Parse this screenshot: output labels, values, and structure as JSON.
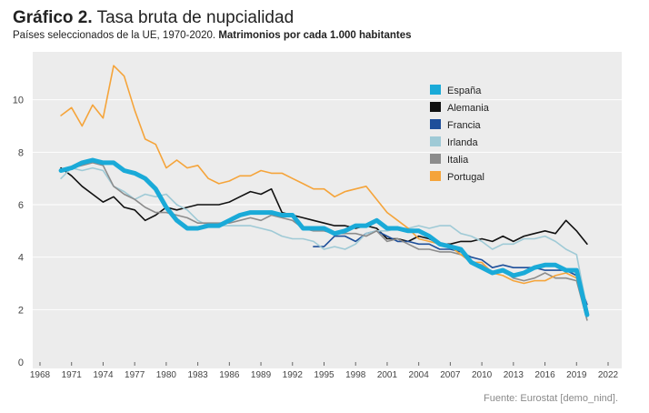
{
  "header": {
    "title_prefix": "Gráfico 2.",
    "title": "Tasa bruta de nupcialidad",
    "subtitle": "Países seleccionados de la UE, 1970-2020.",
    "unit": "Matrimonios por cada 1.000 habitantes"
  },
  "footer": {
    "source": "Fuente: Eurostat [demo_nind]."
  },
  "chart_data": {
    "type": "line",
    "xlim": [
      1968,
      2022
    ],
    "ylim": [
      0,
      12
    ],
    "x_ticks": [
      "1968",
      "1971",
      "1974",
      "1977",
      "1980",
      "1983",
      "1986",
      "1989",
      "1992",
      "1995",
      "1998",
      "2001",
      "2004",
      "2007",
      "2010",
      "2013",
      "2016",
      "2019",
      "2022"
    ],
    "y_ticks": [
      "0",
      "2",
      "4",
      "6",
      "8",
      "10"
    ],
    "grid": true,
    "legend": "top-right",
    "series": [
      {
        "name": "España",
        "color": "#1aaad8",
        "bold": true,
        "x": [
          1970,
          1971,
          1972,
          1973,
          1974,
          1975,
          1976,
          1977,
          1978,
          1979,
          1980,
          1981,
          1982,
          1983,
          1984,
          1985,
          1986,
          1987,
          1988,
          1989,
          1990,
          1991,
          1992,
          1993,
          1994,
          1995,
          1996,
          1997,
          1998,
          1999,
          2000,
          2001,
          2002,
          2003,
          2004,
          2005,
          2006,
          2007,
          2008,
          2009,
          2010,
          2011,
          2012,
          2013,
          2014,
          2015,
          2016,
          2017,
          2018,
          2019,
          2020
        ],
        "y": [
          7.3,
          7.4,
          7.6,
          7.7,
          7.6,
          7.6,
          7.3,
          7.2,
          7.0,
          6.6,
          5.9,
          5.4,
          5.1,
          5.1,
          5.2,
          5.2,
          5.4,
          5.6,
          5.7,
          5.7,
          5.7,
          5.6,
          5.6,
          5.1,
          5.1,
          5.1,
          4.9,
          5.0,
          5.2,
          5.2,
          5.4,
          5.1,
          5.1,
          5.0,
          5.0,
          4.8,
          4.5,
          4.4,
          4.3,
          3.8,
          3.6,
          3.4,
          3.5,
          3.3,
          3.4,
          3.6,
          3.7,
          3.7,
          3.5,
          3.5,
          1.8
        ]
      },
      {
        "name": "Alemania",
        "color": "#111111",
        "x": [
          1970,
          1971,
          1972,
          1973,
          1974,
          1975,
          1976,
          1977,
          1978,
          1979,
          1980,
          1981,
          1982,
          1983,
          1984,
          1985,
          1986,
          1987,
          1988,
          1989,
          1990,
          1991,
          1992,
          1993,
          1994,
          1995,
          1996,
          1997,
          1998,
          1999,
          2000,
          2001,
          2002,
          2003,
          2004,
          2005,
          2006,
          2007,
          2008,
          2009,
          2010,
          2011,
          2012,
          2013,
          2014,
          2015,
          2016,
          2017,
          2018,
          2019,
          2020
        ],
        "y": [
          7.4,
          7.1,
          6.7,
          6.4,
          6.1,
          6.3,
          5.9,
          5.8,
          5.4,
          5.6,
          5.9,
          5.8,
          5.9,
          6.0,
          6.0,
          6.0,
          6.1,
          6.3,
          6.5,
          6.4,
          6.6,
          5.7,
          5.6,
          5.5,
          5.4,
          5.3,
          5.2,
          5.2,
          5.1,
          5.2,
          5.1,
          4.7,
          4.7,
          4.6,
          4.8,
          4.7,
          4.5,
          4.5,
          4.6,
          4.6,
          4.7,
          4.6,
          4.8,
          4.6,
          4.8,
          4.9,
          5.0,
          4.9,
          5.4,
          5.0,
          4.5
        ]
      },
      {
        "name": "Francia",
        "color": "#1e4f9a",
        "x": [
          1994,
          1995,
          1996,
          1997,
          1998,
          1999,
          2000,
          2001,
          2002,
          2003,
          2004,
          2005,
          2006,
          2007,
          2008,
          2009,
          2010,
          2011,
          2012,
          2013,
          2014,
          2015,
          2016,
          2017,
          2018,
          2019,
          2020
        ],
        "y": [
          4.4,
          4.4,
          4.8,
          4.8,
          4.6,
          4.9,
          5.0,
          4.8,
          4.6,
          4.6,
          4.5,
          4.5,
          4.3,
          4.3,
          4.2,
          4.0,
          3.9,
          3.6,
          3.7,
          3.6,
          3.6,
          3.6,
          3.5,
          3.5,
          3.5,
          3.3,
          2.2
        ]
      },
      {
        "name": "Irlanda",
        "color": "#9fcad6",
        "x": [
          1970,
          1971,
          1972,
          1973,
          1974,
          1975,
          1976,
          1977,
          1978,
          1979,
          1980,
          1981,
          1982,
          1983,
          1984,
          1985,
          1986,
          1987,
          1988,
          1989,
          1990,
          1991,
          1992,
          1993,
          1994,
          1995,
          1996,
          1997,
          1998,
          1999,
          2000,
          2001,
          2002,
          2003,
          2004,
          2005,
          2006,
          2007,
          2008,
          2009,
          2010,
          2011,
          2012,
          2013,
          2014,
          2015,
          2016,
          2017,
          2018,
          2019,
          2020
        ],
        "y": [
          7.0,
          7.4,
          7.3,
          7.4,
          7.3,
          6.7,
          6.5,
          6.2,
          6.4,
          6.3,
          6.4,
          6.0,
          5.8,
          5.4,
          5.2,
          5.2,
          5.2,
          5.2,
          5.2,
          5.1,
          5.0,
          4.8,
          4.7,
          4.7,
          4.6,
          4.3,
          4.4,
          4.3,
          4.5,
          4.9,
          5.0,
          5.0,
          5.1,
          5.1,
          5.2,
          5.1,
          5.2,
          5.2,
          4.9,
          4.8,
          4.6,
          4.3,
          4.5,
          4.5,
          4.7,
          4.7,
          4.8,
          4.6,
          4.3,
          4.1,
          2.0
        ]
      },
      {
        "name": "Italia",
        "color": "#8c8c8c",
        "x": [
          1970,
          1971,
          1972,
          1973,
          1974,
          1975,
          1976,
          1977,
          1978,
          1979,
          1980,
          1981,
          1982,
          1983,
          1984,
          1985,
          1986,
          1987,
          1988,
          1989,
          1990,
          1991,
          1992,
          1993,
          1994,
          1995,
          1996,
          1997,
          1998,
          1999,
          2000,
          2001,
          2002,
          2003,
          2004,
          2005,
          2006,
          2007,
          2008,
          2009,
          2010,
          2011,
          2012,
          2013,
          2014,
          2015,
          2016,
          2017,
          2018,
          2019,
          2020
        ],
        "y": [
          7.3,
          7.4,
          7.5,
          7.6,
          7.5,
          6.7,
          6.4,
          6.2,
          5.9,
          5.7,
          5.7,
          5.6,
          5.5,
          5.3,
          5.3,
          5.3,
          5.3,
          5.4,
          5.5,
          5.4,
          5.6,
          5.5,
          5.4,
          5.1,
          5.0,
          5.0,
          4.9,
          4.9,
          4.9,
          4.8,
          5.0,
          4.6,
          4.7,
          4.5,
          4.3,
          4.3,
          4.2,
          4.2,
          4.1,
          3.8,
          3.7,
          3.4,
          3.5,
          3.2,
          3.1,
          3.2,
          3.4,
          3.2,
          3.2,
          3.1,
          1.6
        ]
      },
      {
        "name": "Portugal",
        "color": "#f5a43a",
        "x": [
          1970,
          1971,
          1972,
          1973,
          1974,
          1975,
          1976,
          1977,
          1978,
          1979,
          1980,
          1981,
          1982,
          1983,
          1984,
          1985,
          1986,
          1987,
          1988,
          1989,
          1990,
          1991,
          1992,
          1993,
          1994,
          1995,
          1996,
          1997,
          1998,
          1999,
          2000,
          2001,
          2002,
          2003,
          2004,
          2005,
          2006,
          2007,
          2008,
          2009,
          2010,
          2011,
          2012,
          2013,
          2014,
          2015,
          2016,
          2017,
          2018,
          2019,
          2020
        ],
        "y": [
          9.4,
          9.7,
          9.0,
          9.8,
          9.3,
          11.3,
          10.9,
          9.6,
          8.5,
          8.3,
          7.4,
          7.7,
          7.4,
          7.5,
          7.0,
          6.8,
          6.9,
          7.1,
          7.1,
          7.3,
          7.2,
          7.2,
          7.0,
          6.8,
          6.6,
          6.6,
          6.3,
          6.5,
          6.6,
          6.7,
          6.2,
          5.7,
          5.4,
          5.1,
          4.7,
          4.6,
          4.5,
          4.4,
          4.1,
          3.8,
          3.8,
          3.4,
          3.3,
          3.1,
          3.0,
          3.1,
          3.1,
          3.3,
          3.4,
          3.2,
          1.8
        ]
      }
    ]
  }
}
